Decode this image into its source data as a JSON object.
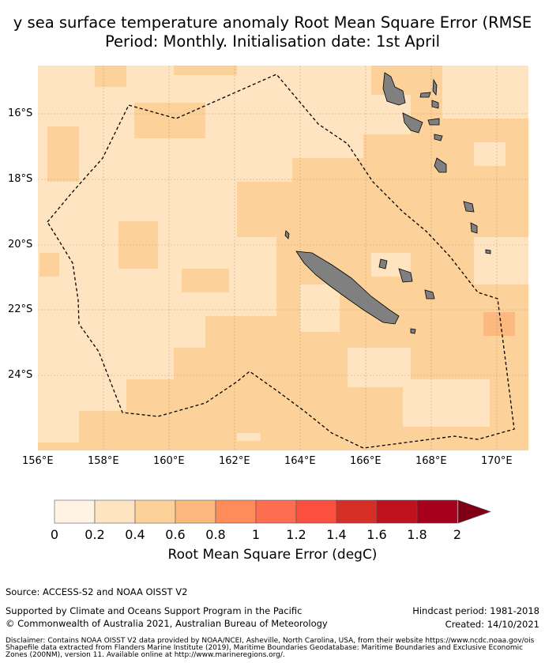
{
  "title": {
    "line1": "y sea surface temperature anomaly Root Mean Square Error (RMSE",
    "line2": "Period: Monthly. Initialisation date: 1st April"
  },
  "map": {
    "lon_labels": [
      "156°E",
      "158°E",
      "160°E",
      "162°E",
      "164°E",
      "166°E",
      "168°E",
      "170°E"
    ],
    "lat_labels": [
      "16°S",
      "18°S",
      "20°S",
      "22°S",
      "24°S"
    ],
    "lon_range": [
      156,
      171
    ],
    "lat_range": [
      -26.1,
      -14.6
    ],
    "land_color": "#808080",
    "boundary_style": "dashed",
    "field_note_colors": {
      "0.2-0.4": "#ffe4c2",
      "0.4-0.6": "#fdd19a",
      "0.6-0.8": "#fdb880"
    }
  },
  "colorbar": {
    "ticks": [
      "0",
      "0.2",
      "0.4",
      "0.6",
      "0.8",
      "1",
      "1.2",
      "1.4",
      "1.6",
      "1.8",
      "2"
    ],
    "colors": [
      "#fff3e2",
      "#ffe4c2",
      "#fdd19a",
      "#fdb880",
      "#fd8c5a",
      "#fc6e4f",
      "#fb503f",
      "#d62f26",
      "#c0121e",
      "#a6001c"
    ],
    "extend_color": "#7f0014",
    "label": "Root Mean Square Error (degC)"
  },
  "footer": {
    "source": "Source: ACCESS-S2 and NOAA OISST V2",
    "supported": "Supported by Climate and Oceans Support Program in the Pacific",
    "copyright": "© Commonwealth of Australia 2021, Australian Bureau of Meteorology",
    "hindcast": "Hindcast period: 1981-2018",
    "created": "Created: 14/10/2021",
    "disclaimer1": "Disclaimer: Contains NOAA OISST V2 data provided by NOAA/NCEI, Asheville, North Carolina, USA, from their website https://www.ncdc.noaa.gov/ois",
    "disclaimer2": "Shapefile data extracted from Flanders Marine Institute (2019), Maritime Boundaries Geodatabase: Maritime Boundaries and Exclusive Economic",
    "disclaimer3": "Zones (200NM), version 11. Available online at http://www.marineregions.org/."
  }
}
